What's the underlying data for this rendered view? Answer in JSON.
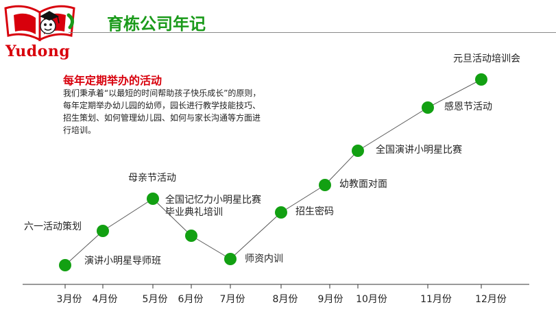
{
  "logo": {
    "brand": "Yudong"
  },
  "header": {
    "title": "育栋公司年记"
  },
  "intro": {
    "title": "每年定期举办的活动",
    "body": "我们秉承着“以最短的时间帮助孩子快乐成长”的原则，每年定期举办幼儿园的幼师，园长进行教学技能技巧、招生策划、如何管理幼儿园、如何与家长沟通等方面进行培训。"
  },
  "colors": {
    "accent_green": "#1a9a1a",
    "dot_green": "#12a012",
    "brand_red": "#d8000c",
    "line_gray": "#555555"
  },
  "timeline": {
    "months": [
      "3月份",
      "4月份",
      "5月份",
      "6月份",
      "7月份",
      "8月份",
      "9月份",
      "10月份",
      "11月份",
      "12月份"
    ],
    "events": [
      {
        "label": "演讲小明星导师班"
      },
      {
        "label": "六一活动策划"
      },
      {
        "label": "母亲节活动"
      },
      {
        "label": "全国记忆力小明星比赛"
      },
      {
        "label": "毕业典礼培训"
      },
      {
        "label": "师资内训"
      },
      {
        "label": "招生密码"
      },
      {
        "label": "幼教面对面"
      },
      {
        "label": "全国演讲小明星比赛"
      },
      {
        "label": "感恩节活动"
      },
      {
        "label": "元旦活动培训会"
      }
    ]
  }
}
